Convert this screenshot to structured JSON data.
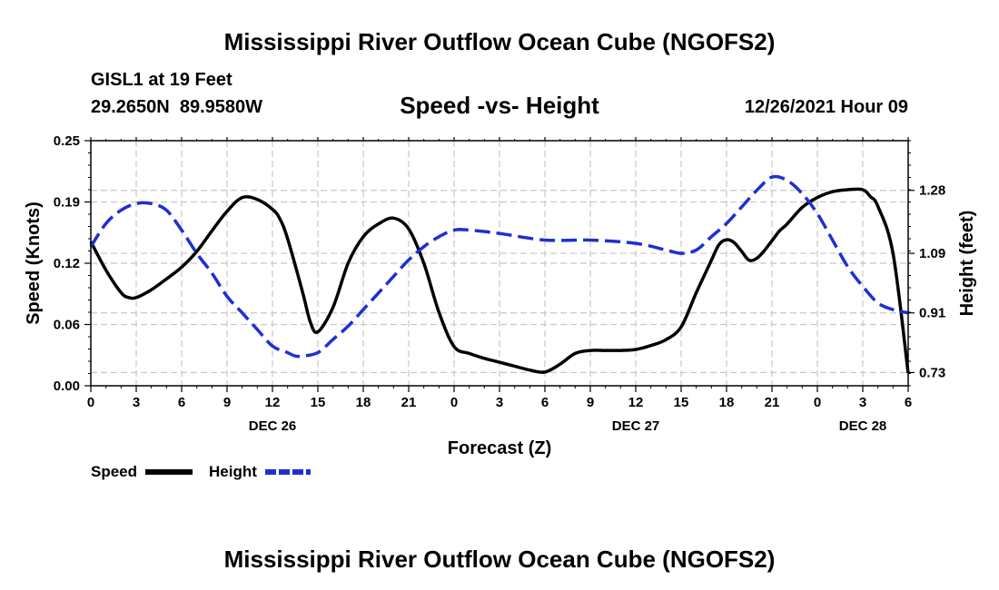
{
  "chart_data": {
    "type": "line",
    "title": "Mississippi River Outflow Ocean Cube (NGOFS2)",
    "station": "GISL1 at 19 Feet",
    "location": "29.2650N  89.9580W",
    "subtitle": "Speed -vs- Height",
    "datetime": "12/26/2021 Hour 09",
    "xlabel": "Forecast (Z)",
    "ylabel_left": "Speed (Knots)",
    "ylabel_right": "Height (feet)",
    "x_range": [
      0,
      54
    ],
    "ylim_left": [
      0,
      0.25
    ],
    "ylim_right": [
      0.69,
      1.43
    ],
    "x_ticks": [
      {
        "x": 0,
        "label": "0"
      },
      {
        "x": 3,
        "label": "3"
      },
      {
        "x": 6,
        "label": "6"
      },
      {
        "x": 9,
        "label": "9"
      },
      {
        "x": 12,
        "label": "12"
      },
      {
        "x": 15,
        "label": "15"
      },
      {
        "x": 18,
        "label": "18"
      },
      {
        "x": 21,
        "label": "21"
      },
      {
        "x": 24,
        "label": "0"
      },
      {
        "x": 27,
        "label": "3"
      },
      {
        "x": 30,
        "label": "6"
      },
      {
        "x": 33,
        "label": "9"
      },
      {
        "x": 36,
        "label": "12"
      },
      {
        "x": 39,
        "label": "15"
      },
      {
        "x": 42,
        "label": "18"
      },
      {
        "x": 45,
        "label": "21"
      },
      {
        "x": 48,
        "label": "0"
      },
      {
        "x": 51,
        "label": "3"
      },
      {
        "x": 54,
        "label": "6"
      }
    ],
    "day_labels": [
      {
        "x": 12,
        "label": "DEC 26"
      },
      {
        "x": 36,
        "label": "DEC 27"
      },
      {
        "x": 51,
        "label": "DEC 28"
      }
    ],
    "y_ticks_left": [
      {
        "v": 0.0,
        "label": "0.00"
      },
      {
        "v": 0.0625,
        "label": "0.06"
      },
      {
        "v": 0.125,
        "label": "0.12"
      },
      {
        "v": 0.1875,
        "label": "0.19"
      },
      {
        "v": 0.25,
        "label": "0.25"
      }
    ],
    "y_ticks_right": [
      {
        "v": 0.73,
        "label": "0.73"
      },
      {
        "v": 0.91,
        "label": "0.91"
      },
      {
        "v": 1.09,
        "label": "1.09"
      },
      {
        "v": 1.28,
        "label": "1.28"
      }
    ],
    "series": [
      {
        "name": "Speed",
        "axis": "left",
        "color": "#000000",
        "dash": "solid",
        "x": [
          0,
          1,
          2,
          2.5,
          3,
          4,
          5,
          6,
          7,
          8,
          9,
          10,
          11,
          12,
          12.5,
          13,
          14,
          14.5,
          15,
          16,
          17,
          18,
          19,
          20,
          21,
          22,
          23,
          24,
          25,
          26,
          27,
          28,
          29,
          30,
          31,
          32,
          33,
          34,
          35,
          36,
          37,
          38,
          39,
          40,
          41,
          41.5,
          42,
          42.5,
          43,
          43.5,
          44,
          44.5,
          45,
          45.5,
          46,
          47,
          48,
          49,
          50,
          51,
          51.5,
          52,
          53,
          54
        ],
        "values": [
          0.147,
          0.118,
          0.095,
          0.09,
          0.09,
          0.098,
          0.109,
          0.121,
          0.137,
          0.158,
          0.178,
          0.192,
          0.19,
          0.18,
          0.17,
          0.15,
          0.095,
          0.065,
          0.055,
          0.08,
          0.125,
          0.152,
          0.165,
          0.171,
          0.16,
          0.125,
          0.075,
          0.04,
          0.033,
          0.028,
          0.024,
          0.02,
          0.016,
          0.014,
          0.022,
          0.033,
          0.036,
          0.036,
          0.036,
          0.037,
          0.041,
          0.047,
          0.06,
          0.095,
          0.128,
          0.144,
          0.149,
          0.146,
          0.137,
          0.128,
          0.13,
          0.138,
          0.148,
          0.158,
          0.165,
          0.182,
          0.192,
          0.198,
          0.2,
          0.2,
          0.193,
          0.183,
          0.135,
          0.013
        ]
      },
      {
        "name": "Height",
        "axis": "right",
        "color": "#1f2fd0",
        "dash": "dashed",
        "x": [
          0,
          1,
          2,
          3,
          4,
          5,
          6,
          7,
          8,
          9,
          10,
          11,
          12,
          13,
          13.5,
          14,
          15,
          16,
          17,
          18,
          19,
          20,
          21,
          22,
          23,
          24,
          25,
          27,
          30,
          33,
          36,
          38,
          39,
          40,
          41,
          42,
          43,
          44,
          45,
          46,
          47,
          48,
          49,
          50,
          51,
          52,
          53,
          54
        ],
        "values": [
          1.11,
          1.18,
          1.22,
          1.24,
          1.24,
          1.22,
          1.16,
          1.09,
          1.03,
          0.96,
          0.91,
          0.86,
          0.81,
          0.79,
          0.78,
          0.78,
          0.79,
          0.83,
          0.87,
          0.92,
          0.97,
          1.02,
          1.07,
          1.11,
          1.14,
          1.16,
          1.16,
          1.15,
          1.13,
          1.13,
          1.12,
          1.1,
          1.09,
          1.1,
          1.14,
          1.18,
          1.23,
          1.28,
          1.32,
          1.31,
          1.27,
          1.21,
          1.13,
          1.05,
          0.99,
          0.94,
          0.92,
          0.91
        ]
      }
    ],
    "legend": [
      {
        "label": "Speed",
        "color": "#000000",
        "dash": "solid"
      },
      {
        "label": "Height",
        "color": "#1f2fd0",
        "dash": "dashed"
      }
    ],
    "grid": true
  },
  "footer_title": "Mississippi River Outflow Ocean Cube (NGOFS2)"
}
